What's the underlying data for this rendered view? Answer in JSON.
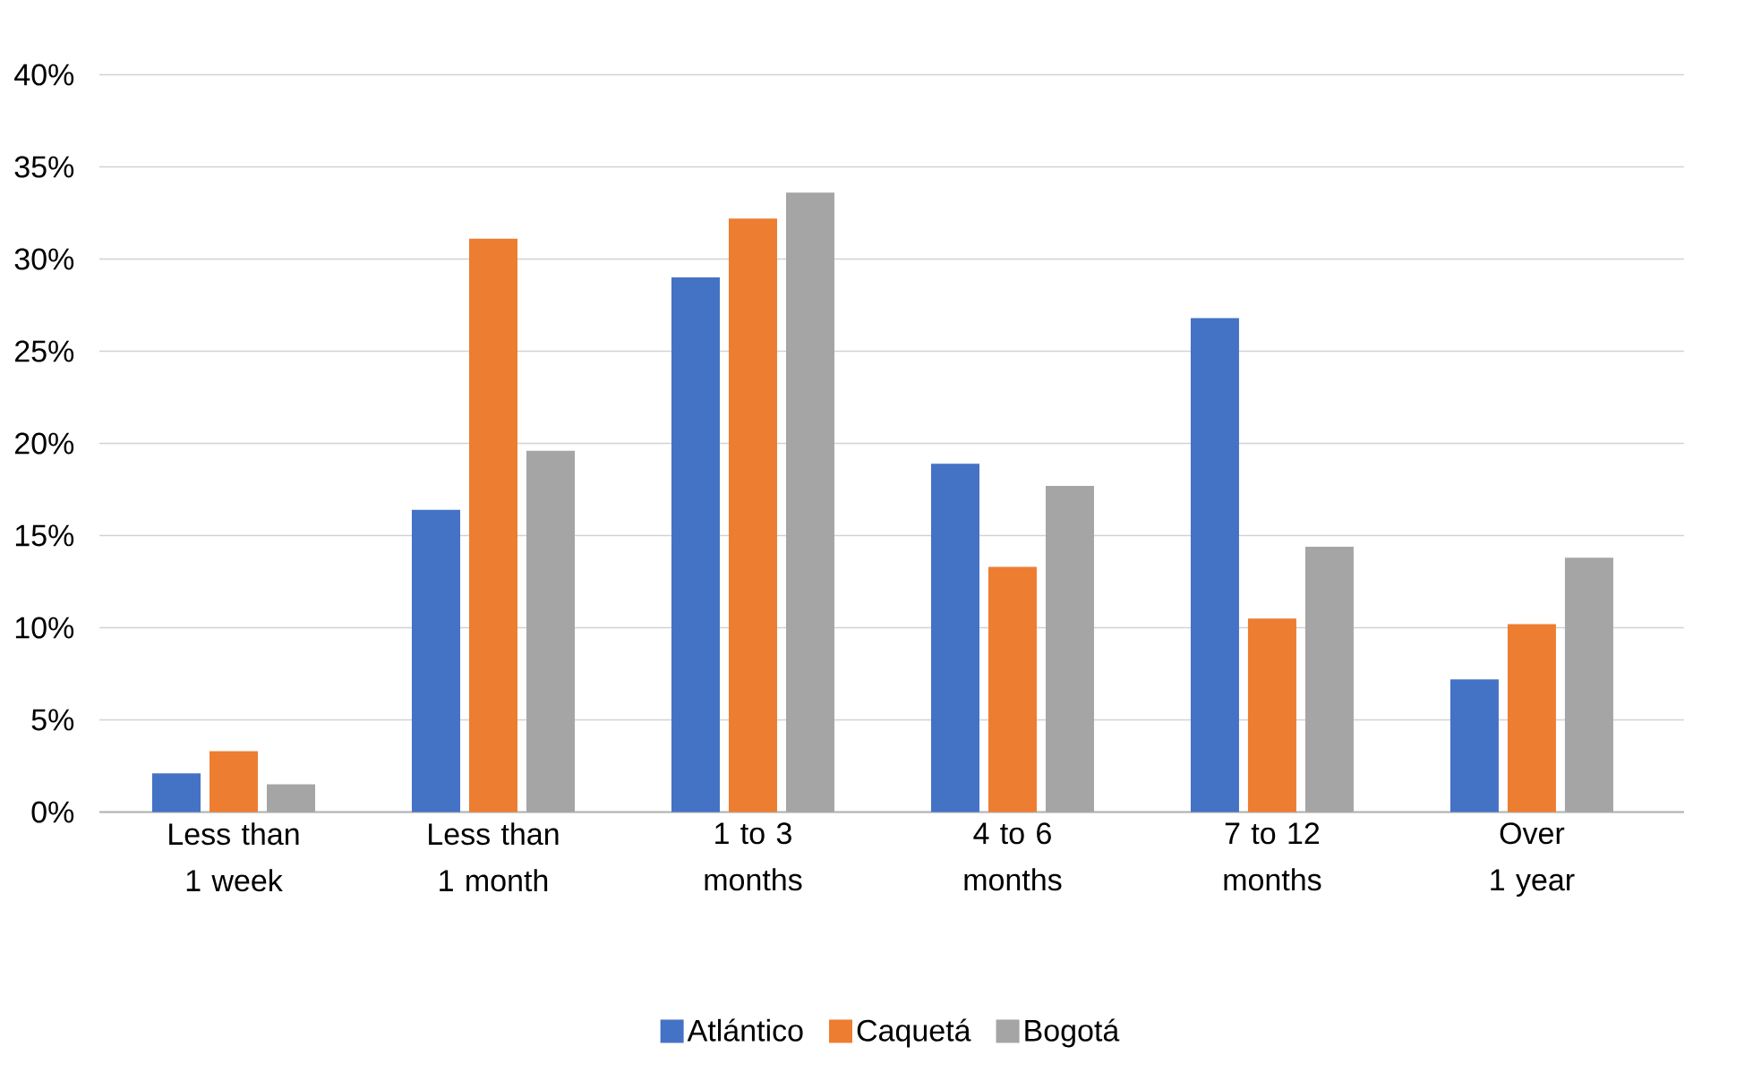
{
  "chart_data": {
    "type": "bar",
    "categories": [
      "Less than 1 week",
      "Less than 1 month",
      "1 to 3 months",
      "4 to 6 months",
      "7 to 12 months",
      "Over 1 year"
    ],
    "series": [
      {
        "name": "Atlántico",
        "color": "#4472c4",
        "values": [
          2.1,
          16.4,
          29.0,
          18.9,
          26.8,
          7.2
        ]
      },
      {
        "name": "Caquetá",
        "color": "#ed7d31",
        "values": [
          3.3,
          31.1,
          32.2,
          13.3,
          10.5,
          10.2
        ]
      },
      {
        "name": "Bogotá",
        "color": "#a5a5a5",
        "values": [
          1.5,
          19.6,
          33.6,
          17.7,
          14.4,
          13.8
        ]
      }
    ],
    "ylim": [
      0,
      40
    ],
    "yticks": [
      {
        "value": 0,
        "label": "0%"
      },
      {
        "value": 5,
        "label": "5%"
      },
      {
        "value": 10,
        "label": "10%"
      },
      {
        "value": 15,
        "label": "15%"
      },
      {
        "value": 20,
        "label": "20%"
      },
      {
        "value": 25,
        "label": "25%"
      },
      {
        "value": 30,
        "label": "30%"
      },
      {
        "value": 35,
        "label": "35%"
      },
      {
        "value": 40,
        "label": "40%"
      }
    ],
    "grid": "y",
    "legend": "bottom"
  }
}
